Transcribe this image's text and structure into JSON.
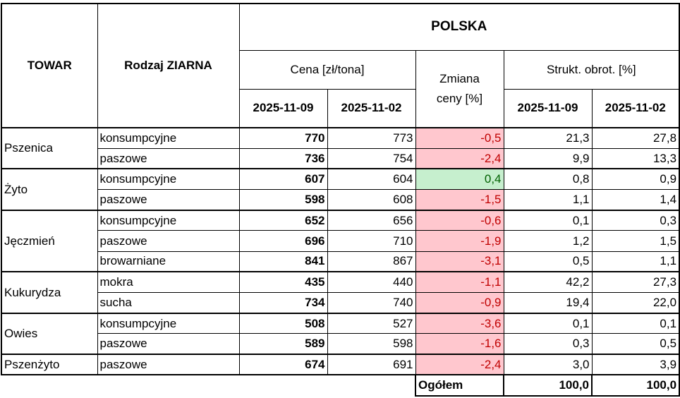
{
  "header": {
    "towar": "TOWAR",
    "rodzaj": "Rodzaj ZIARNA",
    "polska": "POLSKA",
    "cena": "Cena [zł/tona]",
    "zmiana": "Zmiana ceny [%]",
    "strukt": "Strukt. obrot. [%]",
    "dates": [
      "2025-11-09",
      "2025-11-02",
      "2025-11-09",
      "2025-11-02"
    ]
  },
  "groups": [
    {
      "towar": "Pszenica",
      "rows": [
        [
          "konsumpcyjne",
          "770",
          "773",
          "-0,5",
          "21,3",
          "27,8"
        ],
        [
          "paszowe",
          "736",
          "754",
          "-2,4",
          "9,9",
          "13,3"
        ]
      ]
    },
    {
      "towar": "Żyto",
      "rows": [
        [
          "konsumpcyjne",
          "607",
          "604",
          "0,4",
          "0,8",
          "0,9"
        ],
        [
          "paszowe",
          "598",
          "608",
          "-1,5",
          "1,1",
          "1,4"
        ]
      ]
    },
    {
      "towar": "Jęczmień",
      "rows": [
        [
          "konsumpcyjne",
          "652",
          "656",
          "-0,6",
          "0,1",
          "0,3"
        ],
        [
          "paszowe",
          "696",
          "710",
          "-1,9",
          "1,2",
          "1,5"
        ],
        [
          "browarniane",
          "841",
          "867",
          "-3,1",
          "0,5",
          "1,1"
        ]
      ]
    },
    {
      "towar": "Kukurydza",
      "rows": [
        [
          "mokra",
          "435",
          "440",
          "-1,1",
          "42,2",
          "27,3"
        ],
        [
          "sucha",
          "734",
          "740",
          "-0,9",
          "19,4",
          "22,0"
        ]
      ]
    },
    {
      "towar": "Owies",
      "rows": [
        [
          "konsumpcyjne",
          "508",
          "527",
          "-3,6",
          "0,1",
          "0,1"
        ],
        [
          "paszowe",
          "589",
          "598",
          "-1,6",
          "0,3",
          "0,5"
        ]
      ]
    },
    {
      "towar": "Pszenżyto",
      "rows": [
        [
          "paszowe",
          "674",
          "691",
          "-2,4",
          "3,0",
          "3,9"
        ]
      ]
    }
  ],
  "total": {
    "label": "Ogółem",
    "values": [
      "100,0",
      "100,0"
    ]
  }
}
